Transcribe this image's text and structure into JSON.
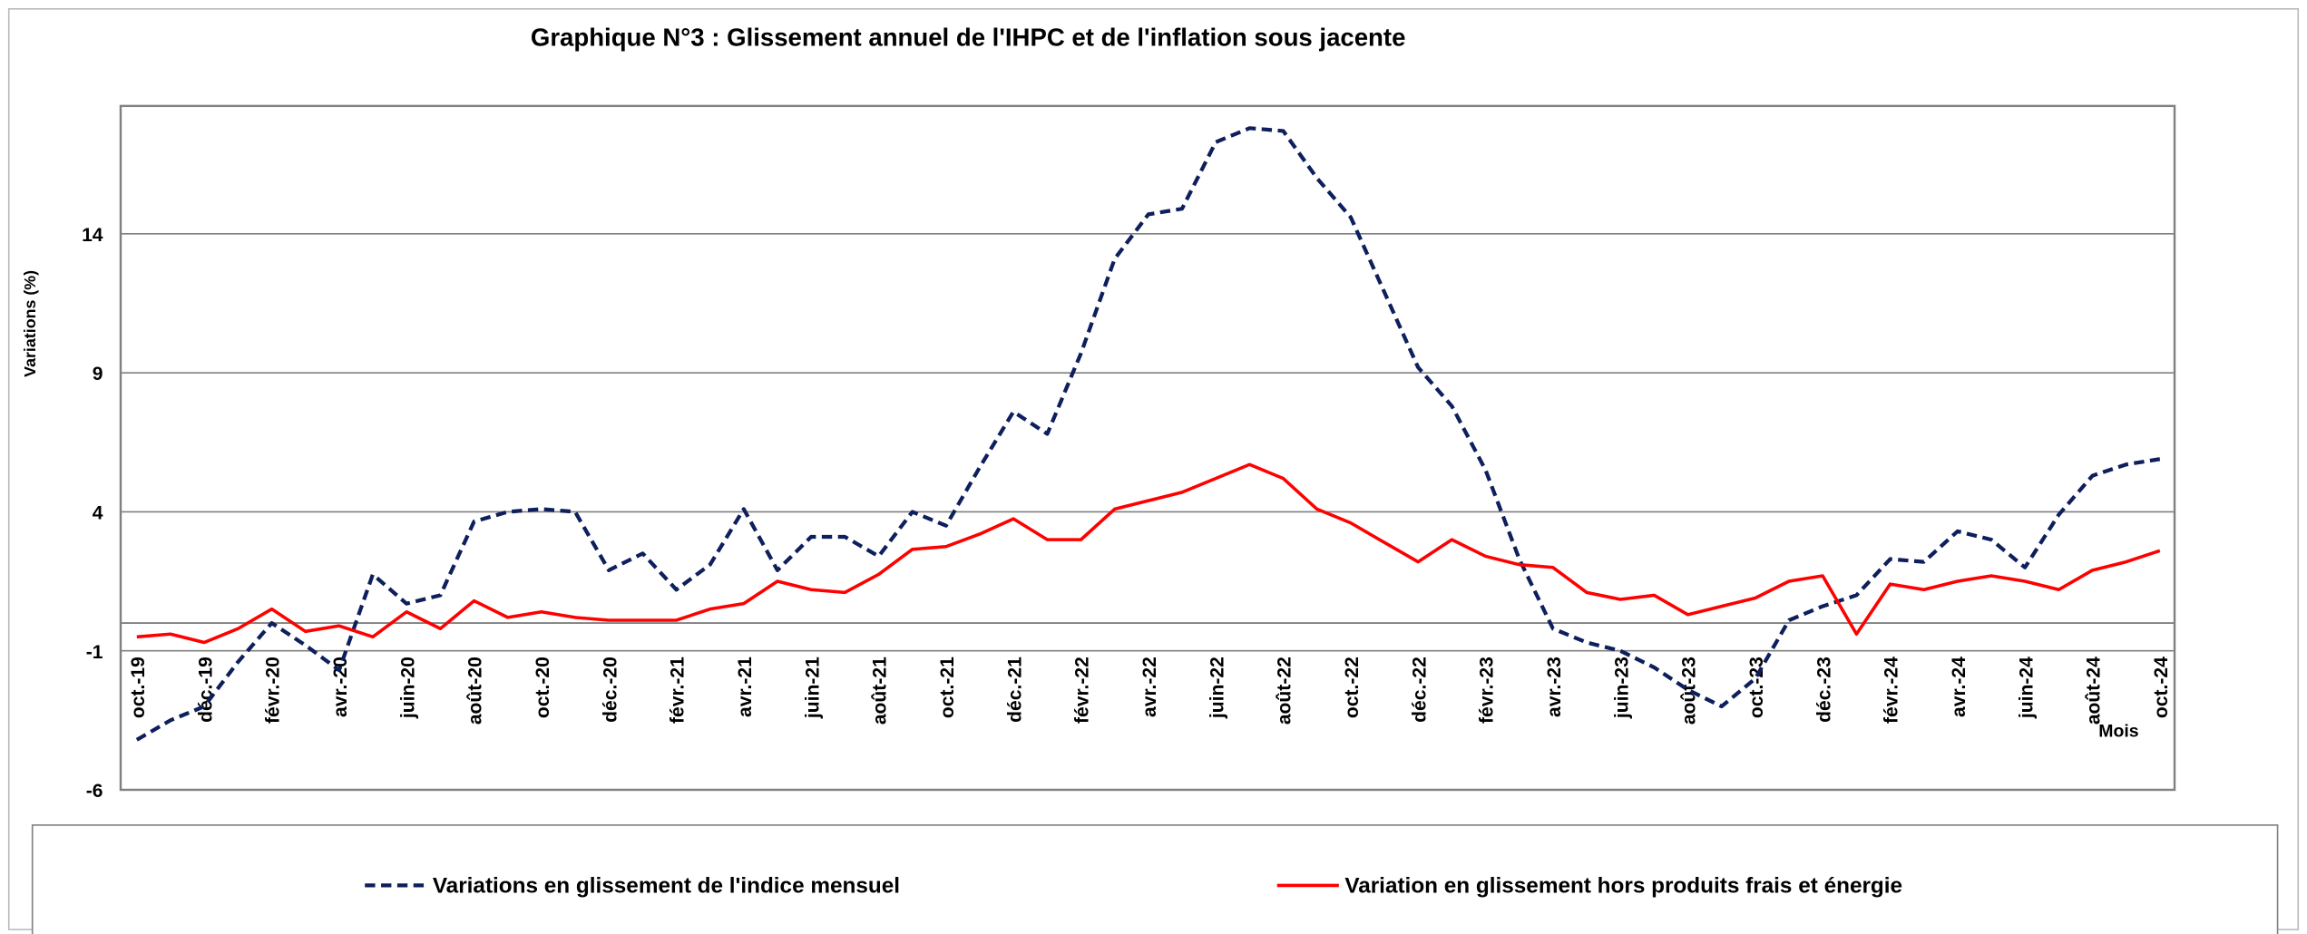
{
  "chart_data": {
    "type": "line",
    "title": "Graphique N°3 : Glissement annuel de l'IHPC et de l'inflation sous jacente",
    "y_label": "Variations (%)",
    "x_label": "Mois",
    "categories": [
      "oct.-19",
      null,
      "déc.-19",
      null,
      "févr.-20",
      null,
      "avr.-20",
      null,
      "juin-20",
      null,
      "août-20",
      null,
      "oct.-20",
      null,
      "déc.-20",
      null,
      "févr.-21",
      null,
      "avr.-21",
      null,
      "juin-21",
      null,
      "août-21",
      null,
      "oct.-21",
      null,
      "déc.-21",
      null,
      "févr.-22",
      null,
      "avr.-22",
      null,
      "juin-22",
      null,
      "août-22",
      null,
      "oct.-22",
      null,
      "déc.-22",
      null,
      "févr.-23",
      null,
      "avr.-23",
      null,
      "juin-23",
      null,
      "août-23",
      null,
      "oct.-23",
      null,
      "déc.-23",
      null,
      "févr.-24",
      null,
      "avr.-24",
      null,
      "juin-24",
      null,
      "août-24",
      null,
      "oct.-24"
    ],
    "series": [
      {
        "name": "Variations en glissement de l'indice mensuel",
        "color": "#0d1f5c",
        "dashed": true,
        "values": [
          -4.2,
          -3.5,
          -3.0,
          -1.4,
          0.0,
          -0.8,
          -1.7,
          1.75,
          0.7,
          1.0,
          3.65,
          4.0,
          4.1,
          4.0,
          1.9,
          2.5,
          1.2,
          2.1,
          4.1,
          1.9,
          3.1,
          3.1,
          2.4,
          4.0,
          3.5,
          5.6,
          7.6,
          6.8,
          9.7,
          13.1,
          14.7,
          14.9,
          17.3,
          17.8,
          17.7,
          16.0,
          14.6,
          11.9,
          9.2,
          7.8,
          5.5,
          2.3,
          -0.2,
          -0.7,
          -1.0,
          -1.6,
          -2.4,
          -3.0,
          -2.0,
          0.1,
          0.6,
          1.0,
          2.3,
          2.2,
          3.3,
          3.0,
          2.0,
          3.9,
          5.3,
          5.7,
          5.9
        ]
      },
      {
        "name": "Variation en glissement hors produits frais et énergie",
        "color": "#ff0000",
        "dashed": false,
        "values": [
          -0.5,
          -0.4,
          -0.7,
          -0.2,
          0.5,
          -0.3,
          -0.1,
          -0.5,
          0.4,
          -0.2,
          0.8,
          0.2,
          0.4,
          0.2,
          0.1,
          0.1,
          0.1,
          0.5,
          0.7,
          1.5,
          1.2,
          1.1,
          1.75,
          2.65,
          2.75,
          3.2,
          3.75,
          3.0,
          3.0,
          4.1,
          4.4,
          4.7,
          5.2,
          5.7,
          5.2,
          4.1,
          3.6,
          2.9,
          2.2,
          3.0,
          2.4,
          2.1,
          2.0,
          1.1,
          0.85,
          1.0,
          0.3,
          0.6,
          0.9,
          1.5,
          1.7,
          -0.4,
          1.4,
          1.2,
          1.5,
          1.7,
          1.5,
          1.2,
          1.9,
          2.2,
          2.6
        ]
      }
    ],
    "ylim": [
      -6,
      18.6
    ],
    "yticks": [
      -6,
      -1,
      4,
      9,
      14
    ],
    "grid": true
  }
}
